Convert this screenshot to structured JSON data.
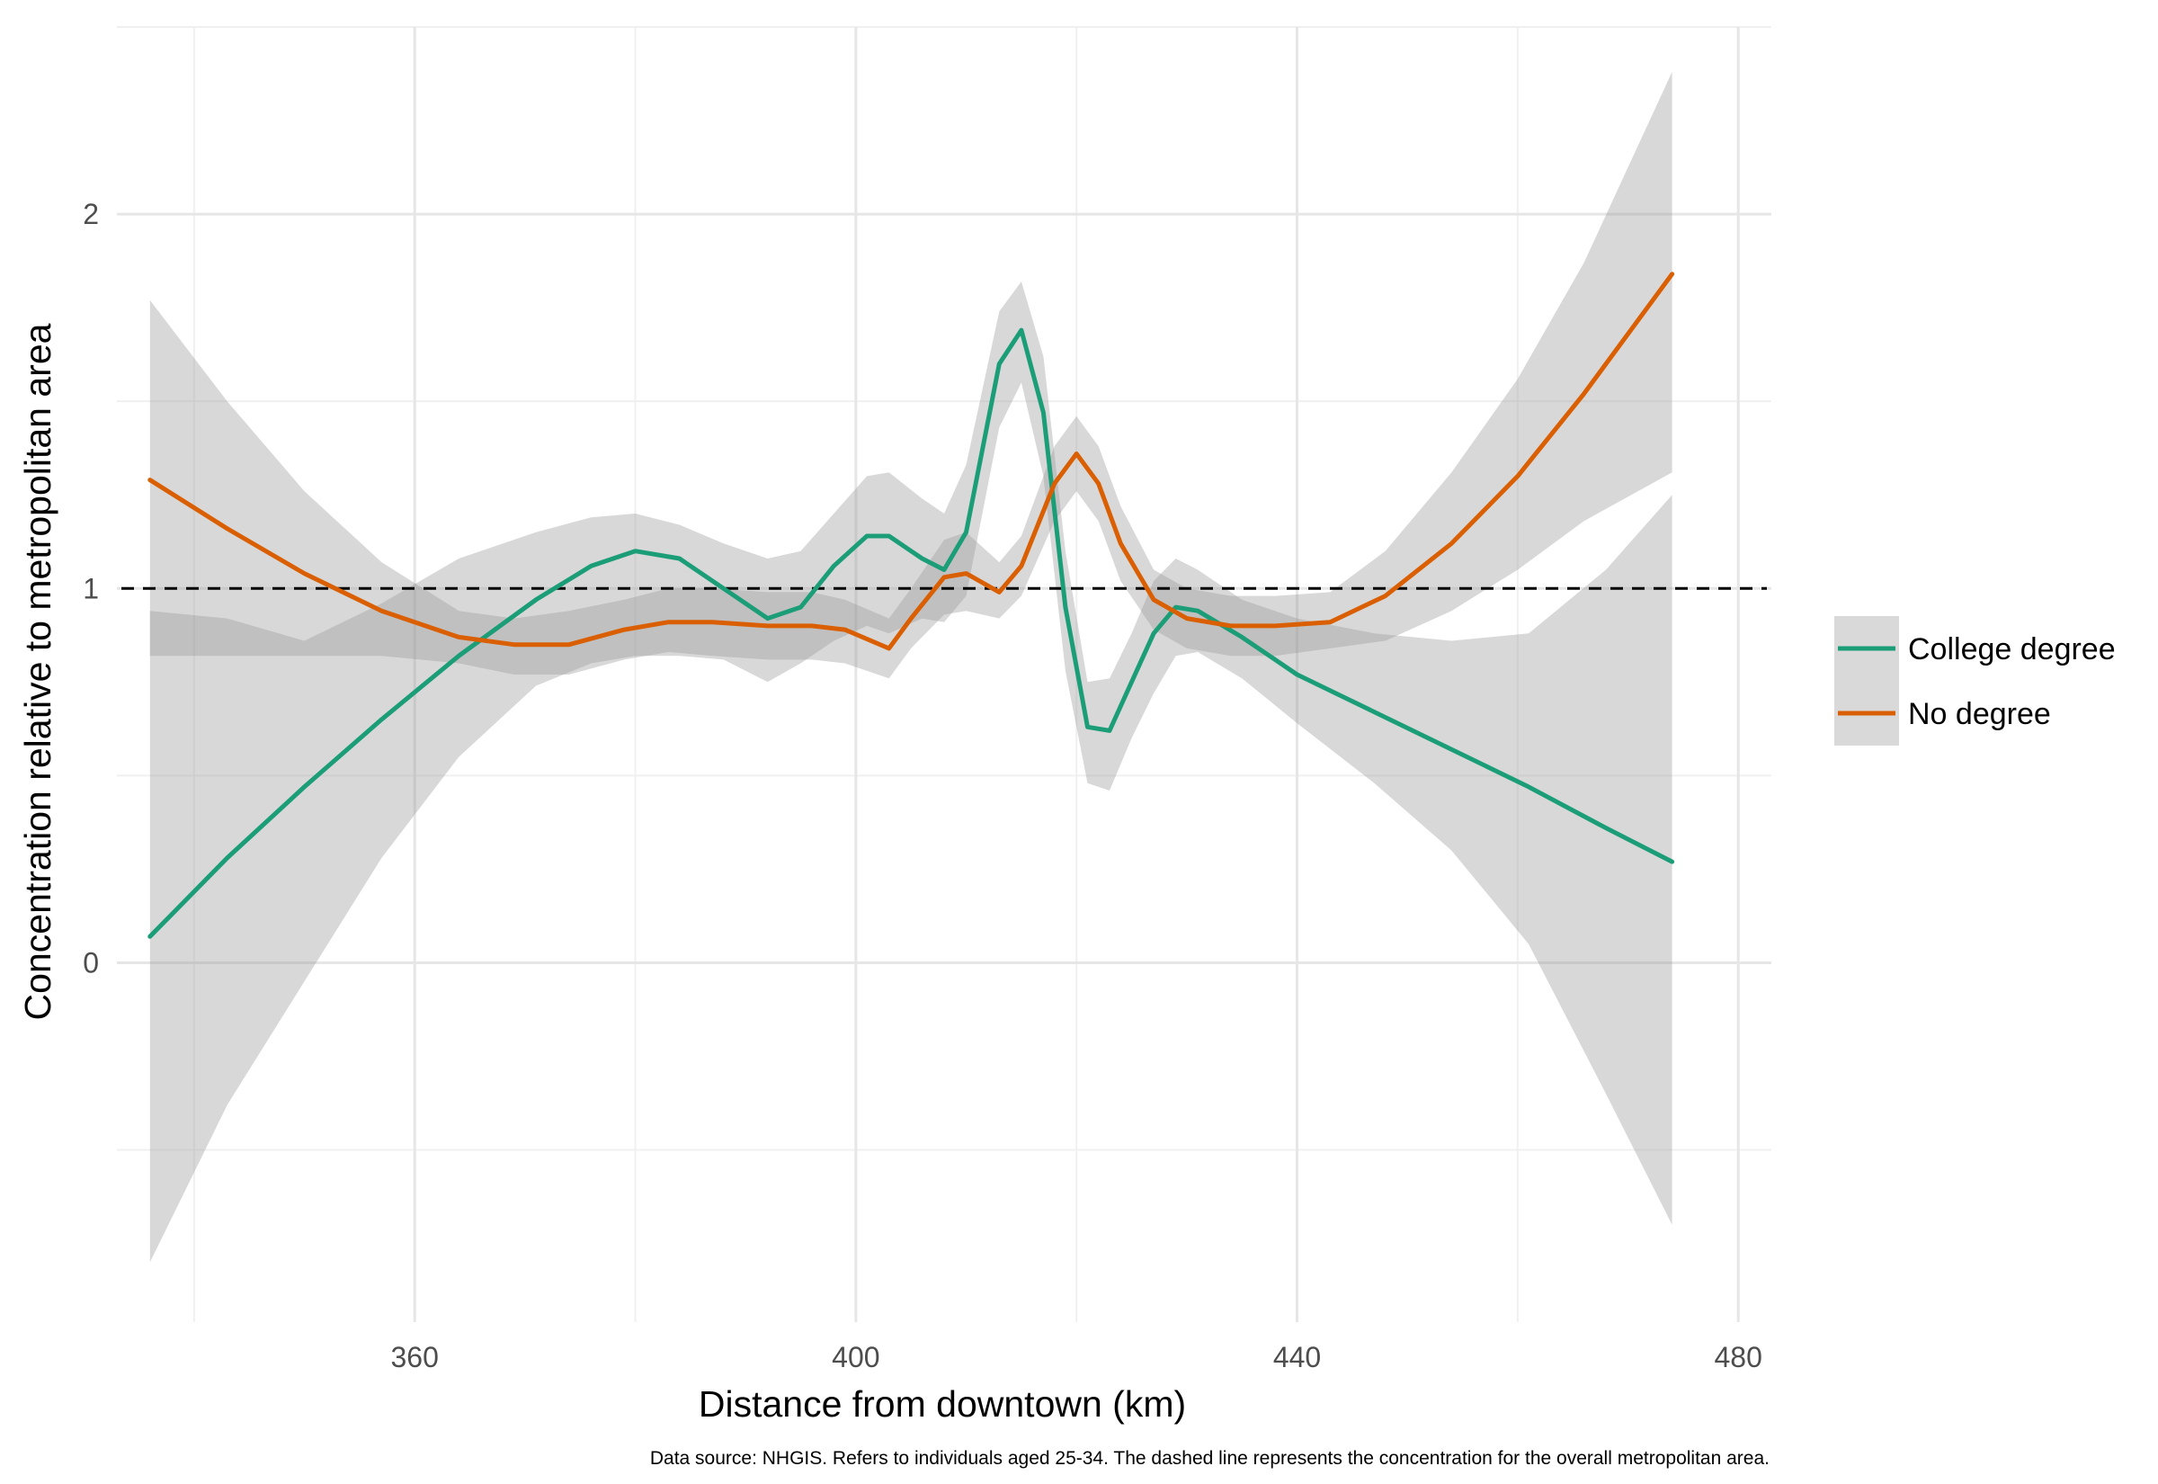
{
  "chart_data": {
    "type": "line",
    "xlabel": "Distance from downtown (km)",
    "ylabel": "Concentration relative to metropolitan area",
    "caption": "Data source: NHGIS. Refers to individuals aged 25-34. The dashed line represents the concentration for the overall metropolitan area.",
    "xlim": [
      333,
      483
    ],
    "ylim": [
      -0.96,
      2.5
    ],
    "x_ticks": [
      360,
      400,
      440,
      480
    ],
    "y_ticks": [
      0,
      1,
      2
    ],
    "x_tick_labels": [
      "360",
      "400",
      "440",
      "480"
    ],
    "y_tick_labels": [
      "0",
      "1",
      "2"
    ],
    "reference_line": 1,
    "grid": true,
    "legend_position": "right",
    "series": [
      {
        "name": "College degree",
        "color": "#1b9e77",
        "x": [
          336,
          343,
          350,
          357,
          364,
          371,
          376,
          380,
          384,
          388,
          392,
          395,
          398,
          401,
          403,
          406,
          408,
          410,
          413,
          415,
          417,
          419,
          421,
          423,
          425,
          427,
          429,
          431,
          435,
          440,
          447,
          454,
          461,
          468,
          474
        ],
        "y": [
          0.07,
          0.28,
          0.47,
          0.65,
          0.82,
          0.97,
          1.06,
          1.1,
          1.08,
          1.0,
          0.92,
          0.95,
          1.06,
          1.14,
          1.14,
          1.08,
          1.05,
          1.15,
          1.6,
          1.69,
          1.47,
          0.95,
          0.63,
          0.62,
          0.75,
          0.88,
          0.95,
          0.94,
          0.87,
          0.77,
          0.67,
          0.57,
          0.47,
          0.36,
          0.27
        ],
        "ci_lower": [
          -0.8,
          -0.38,
          -0.05,
          0.28,
          0.55,
          0.74,
          0.8,
          0.82,
          0.82,
          0.81,
          0.75,
          0.8,
          0.86,
          0.9,
          0.88,
          0.92,
          0.91,
          0.98,
          1.43,
          1.55,
          1.3,
          0.78,
          0.48,
          0.46,
          0.6,
          0.72,
          0.82,
          0.83,
          0.76,
          0.64,
          0.48,
          0.3,
          0.05,
          -0.35,
          -0.7
        ],
        "ci_upper": [
          0.94,
          0.92,
          0.86,
          0.96,
          1.08,
          1.15,
          1.19,
          1.2,
          1.17,
          1.12,
          1.08,
          1.1,
          1.2,
          1.3,
          1.31,
          1.24,
          1.2,
          1.33,
          1.74,
          1.82,
          1.62,
          1.1,
          0.75,
          0.76,
          0.88,
          1.02,
          1.08,
          1.05,
          0.97,
          0.92,
          0.88,
          0.86,
          0.88,
          1.05,
          1.25
        ]
      },
      {
        "name": "No degree",
        "color": "#d95f02",
        "x": [
          336,
          343,
          350,
          357,
          364,
          369,
          374,
          379,
          383,
          387,
          392,
          396,
          399,
          403,
          405,
          408,
          410,
          413,
          415,
          418,
          420,
          422,
          424,
          427,
          430,
          434,
          438,
          443,
          448,
          454,
          460,
          466,
          474
        ],
        "y": [
          1.29,
          1.16,
          1.04,
          0.94,
          0.87,
          0.85,
          0.85,
          0.89,
          0.91,
          0.91,
          0.9,
          0.9,
          0.89,
          0.84,
          0.92,
          1.03,
          1.04,
          0.99,
          1.06,
          1.28,
          1.36,
          1.28,
          1.12,
          0.97,
          0.92,
          0.9,
          0.9,
          0.91,
          0.98,
          1.12,
          1.3,
          1.52,
          1.84
        ],
        "ci_lower": [
          0.82,
          0.82,
          0.82,
          0.82,
          0.8,
          0.77,
          0.77,
          0.81,
          0.83,
          0.82,
          0.81,
          0.81,
          0.8,
          0.76,
          0.84,
          0.93,
          0.94,
          0.92,
          0.98,
          1.18,
          1.26,
          1.18,
          1.02,
          0.89,
          0.84,
          0.82,
          0.82,
          0.84,
          0.86,
          0.94,
          1.05,
          1.18,
          1.31
        ],
        "ci_upper": [
          1.77,
          1.5,
          1.26,
          1.07,
          0.94,
          0.92,
          0.94,
          0.97,
          1.0,
          1.0,
          0.99,
          0.99,
          0.97,
          0.92,
          1.0,
          1.13,
          1.15,
          1.07,
          1.14,
          1.38,
          1.46,
          1.38,
          1.22,
          1.05,
          1.0,
          0.98,
          0.98,
          0.99,
          1.1,
          1.31,
          1.56,
          1.87,
          2.38
        ]
      }
    ]
  }
}
